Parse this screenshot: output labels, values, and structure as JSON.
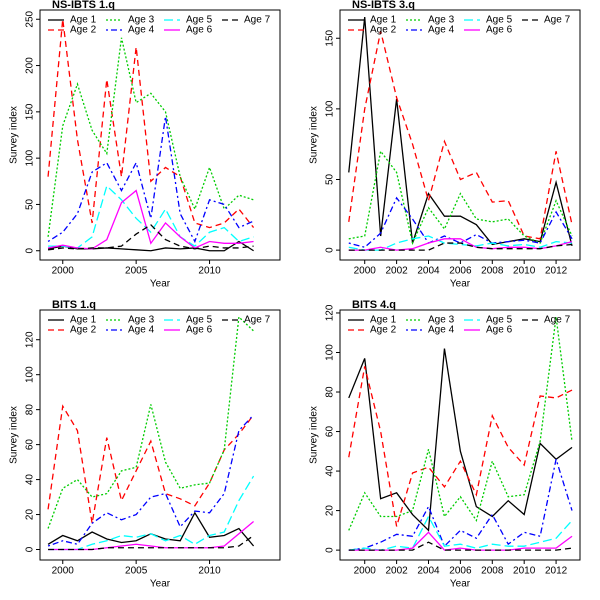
{
  "chart_data": [
    {
      "type": "line",
      "title": "NS-IBTS 1.q",
      "xlabel": "Year",
      "ylabel": "Survey index",
      "legend": "top",
      "x": [
        1999,
        2000,
        2001,
        2002,
        2003,
        2004,
        2005,
        2006,
        2007,
        2008,
        2009,
        2010,
        2011,
        2012,
        2013
      ],
      "xlim": [
        1998.45,
        2014.8
      ],
      "ylim": [
        -10,
        260
      ],
      "xticks": [
        2000,
        2005,
        2010
      ],
      "yticks": [
        0,
        50,
        100,
        150,
        200,
        250
      ],
      "series": [
        {
          "name": "Age 1",
          "color": "#000000",
          "linestyle": "solid",
          "values": [
            2,
            5,
            2,
            2,
            3,
            2,
            1,
            0,
            3,
            2,
            3,
            0,
            0,
            10,
            0
          ]
        },
        {
          "name": "Age 2",
          "color": "#ff0000",
          "linestyle": "dashed",
          "values": [
            80,
            250,
            120,
            30,
            185,
            80,
            220,
            75,
            90,
            80,
            30,
            25,
            30,
            45,
            25
          ]
        },
        {
          "name": "Age 3",
          "color": "#00cc00",
          "linestyle": "dotted",
          "values": [
            15,
            135,
            180,
            130,
            105,
            230,
            160,
            170,
            150,
            80,
            45,
            90,
            45,
            60,
            55
          ]
        },
        {
          "name": "Age 4",
          "color": "#0000ff",
          "linestyle": "dotdash",
          "values": [
            10,
            20,
            40,
            85,
            95,
            65,
            95,
            35,
            145,
            40,
            10,
            55,
            50,
            25,
            32
          ]
        },
        {
          "name": "Age 5",
          "color": "#00ffff",
          "linestyle": "longdash",
          "values": [
            5,
            5,
            3,
            15,
            70,
            55,
            35,
            20,
            45,
            15,
            5,
            20,
            25,
            10,
            15
          ]
        },
        {
          "name": "Age 6",
          "color": "#ff00ff",
          "linestyle": "solid",
          "values": [
            3,
            6,
            3,
            2,
            12,
            52,
            65,
            8,
            30,
            15,
            3,
            10,
            8,
            8,
            10
          ]
        },
        {
          "name": "Age 7",
          "color": "#000000",
          "linestyle": "dashed",
          "values": [
            1,
            3,
            2,
            3,
            3,
            5,
            18,
            28,
            12,
            5,
            2,
            5,
            3,
            3,
            5
          ]
        }
      ]
    },
    {
      "type": "line",
      "title": "NS-IBTS 3.q",
      "xlabel": "Year",
      "ylabel": "Survey index",
      "legend": "top",
      "x": [
        1999,
        2000,
        2001,
        2002,
        2003,
        2004,
        2005,
        2006,
        2007,
        2008,
        2009,
        2010,
        2011,
        2012,
        2013
      ],
      "xlim": [
        1998.45,
        2013.5
      ],
      "ylim": [
        -7,
        170
      ],
      "xticks": [
        2000,
        2002,
        2004,
        2006,
        2008,
        2010,
        2012
      ],
      "yticks": [
        0,
        50,
        100,
        150
      ],
      "series": [
        {
          "name": "Age 1",
          "color": "#000000",
          "linestyle": "solid",
          "values": [
            55,
            165,
            10,
            107,
            5,
            40,
            24,
            24,
            18,
            4,
            6,
            8,
            6,
            48,
            3
          ]
        },
        {
          "name": "Age 2",
          "color": "#ff0000",
          "linestyle": "dashed",
          "values": [
            20,
            100,
            155,
            108,
            75,
            35,
            77,
            50,
            55,
            34,
            35,
            10,
            8,
            70,
            18
          ]
        },
        {
          "name": "Age 3",
          "color": "#00cc00",
          "linestyle": "dotted",
          "values": [
            8,
            10,
            70,
            55,
            5,
            30,
            15,
            40,
            22,
            20,
            22,
            10,
            5,
            35,
            10
          ]
        },
        {
          "name": "Age 4",
          "color": "#0000ff",
          "linestyle": "dotdash",
          "values": [
            5,
            2,
            12,
            37,
            22,
            5,
            10,
            5,
            11,
            5,
            6,
            7,
            5,
            27,
            8
          ]
        },
        {
          "name": "Age 5",
          "color": "#00ffff",
          "linestyle": "longdash",
          "values": [
            2,
            0,
            0,
            5,
            8,
            10,
            5,
            4,
            3,
            5,
            3,
            4,
            2,
            6,
            5
          ]
        },
        {
          "name": "Age 6",
          "color": "#ff00ff",
          "linestyle": "solid",
          "values": [
            0,
            0,
            2,
            0,
            1,
            5,
            8,
            8,
            2,
            1,
            2,
            2,
            1,
            3,
            6
          ]
        },
        {
          "name": "Age 7",
          "color": "#000000",
          "linestyle": "dashed",
          "values": [
            0,
            0,
            0,
            0,
            0,
            0,
            5,
            5,
            2,
            1,
            1,
            1,
            1,
            3,
            4
          ]
        }
      ]
    },
    {
      "type": "line",
      "title": "BITS 1.q",
      "xlabel": "Year",
      "ylabel": "Survey index",
      "legend": "top",
      "x": [
        1999,
        2000,
        2001,
        2002,
        2003,
        2004,
        2005,
        2006,
        2007,
        2008,
        2009,
        2010,
        2011,
        2012,
        2013
      ],
      "xlim": [
        1998.45,
        2014.8
      ],
      "ylim": [
        -6,
        137
      ],
      "xticks": [
        2000,
        2005,
        2010
      ],
      "yticks": [
        0,
        20,
        40,
        60,
        80,
        100,
        120
      ],
      "series": [
        {
          "name": "Age 1",
          "color": "#000000",
          "linestyle": "solid",
          "values": [
            3,
            8,
            5,
            10,
            6,
            4,
            5,
            9,
            6,
            5,
            21,
            7,
            8,
            12,
            2
          ]
        },
        {
          "name": "Age 2",
          "color": "#ff0000",
          "linestyle": "dashed",
          "values": [
            23,
            82,
            68,
            15,
            64,
            28,
            45,
            62,
            32,
            29,
            25,
            38,
            57,
            66,
            77
          ]
        },
        {
          "name": "Age 3",
          "color": "#00cc00",
          "linestyle": "dotted",
          "values": [
            12,
            35,
            40,
            30,
            32,
            45,
            47,
            83,
            50,
            35,
            37,
            38,
            57,
            133,
            125
          ]
        },
        {
          "name": "Age 4",
          "color": "#0000ff",
          "linestyle": "dotdash",
          "values": [
            2,
            5,
            3,
            15,
            21,
            17,
            20,
            30,
            32,
            13,
            22,
            21,
            32,
            68,
            77
          ]
        },
        {
          "name": "Age 5",
          "color": "#00ffff",
          "linestyle": "longdash",
          "values": [
            0,
            0,
            0,
            3,
            5,
            8,
            7,
            9,
            5,
            8,
            3,
            8,
            10,
            28,
            42
          ]
        },
        {
          "name": "Age 6",
          "color": "#ff00ff",
          "linestyle": "solid",
          "values": [
            0,
            0,
            0,
            0,
            1,
            2,
            3,
            2,
            1,
            1,
            1,
            1,
            2,
            9,
            16
          ]
        },
        {
          "name": "Age 7",
          "color": "#000000",
          "linestyle": "dashed",
          "values": [
            0,
            0,
            0,
            0,
            1,
            1,
            1,
            1,
            1,
            1,
            1,
            1,
            1,
            2,
            8
          ]
        }
      ]
    },
    {
      "type": "line",
      "title": "BITS 4.q",
      "xlabel": "Year",
      "ylabel": "Survey index",
      "legend": "top",
      "x": [
        1999,
        2000,
        2001,
        2002,
        2003,
        2004,
        2005,
        2006,
        2007,
        2008,
        2009,
        2010,
        2011,
        2012,
        2013
      ],
      "xlim": [
        1998.45,
        2013.5
      ],
      "ylim": [
        -5,
        121.5
      ],
      "xticks": [
        2000,
        2002,
        2004,
        2006,
        2008,
        2010,
        2012
      ],
      "yticks": [
        0,
        20,
        40,
        60,
        80,
        100,
        120
      ],
      "series": [
        {
          "name": "Age 1",
          "color": "#000000",
          "linestyle": "solid",
          "values": [
            77,
            97,
            26,
            29,
            18,
            10,
            102,
            50,
            22,
            17,
            25,
            18,
            54,
            46,
            52
          ]
        },
        {
          "name": "Age 2",
          "color": "#ff0000",
          "linestyle": "dashed",
          "values": [
            47,
            93,
            60,
            12,
            39,
            42,
            32,
            45,
            28,
            68,
            52,
            43,
            78,
            77,
            81
          ]
        },
        {
          "name": "Age 3",
          "color": "#00cc00",
          "linestyle": "dotted",
          "values": [
            10,
            29,
            17,
            17,
            20,
            51,
            17,
            27,
            15,
            45,
            27,
            28,
            55,
            118,
            55
          ]
        },
        {
          "name": "Age 4",
          "color": "#0000ff",
          "linestyle": "dotdash",
          "values": [
            0,
            1,
            4,
            8,
            7,
            22,
            2,
            10,
            6,
            18,
            3,
            9,
            7,
            46,
            20
          ]
        },
        {
          "name": "Age 5",
          "color": "#00ffff",
          "linestyle": "longdash",
          "values": [
            0,
            1,
            0,
            2,
            1,
            17,
            2,
            3,
            1,
            3,
            2,
            2,
            4,
            6,
            15
          ]
        },
        {
          "name": "Age 6",
          "color": "#ff00ff",
          "linestyle": "solid",
          "values": [
            0,
            0,
            0,
            0,
            1,
            9,
            0,
            1,
            0,
            0,
            0,
            1,
            1,
            1,
            7
          ]
        },
        {
          "name": "Age 7",
          "color": "#000000",
          "linestyle": "dashed",
          "values": [
            0,
            0,
            0,
            0,
            0,
            4,
            0,
            0,
            0,
            0,
            0,
            0,
            0,
            0,
            1
          ]
        }
      ]
    }
  ]
}
